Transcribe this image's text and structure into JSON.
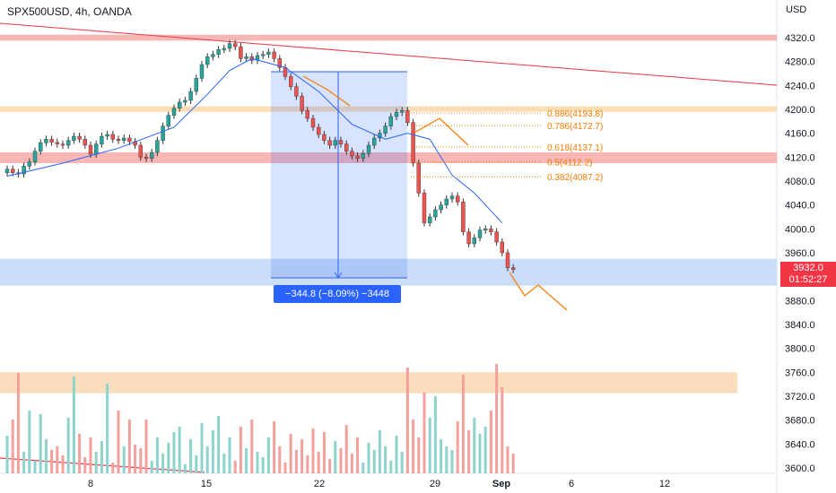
{
  "header": {
    "symbol_line": "SPX500USD, 4h, OANDA",
    "currency": "USD"
  },
  "price_tag": {
    "price": "3932.0",
    "countdown": "01:52:27"
  },
  "measure": {
    "label": "−344.8 (−8.09%) −3448"
  },
  "colors": {
    "up": "#26a69a",
    "down": "#ef5350",
    "ma": "#2962ff",
    "resistance_zone": "#f7a9a8",
    "support_zone": "#bbd2f7",
    "fib": "#f57c00",
    "volume_up": "#8fd3cd",
    "volume_down": "#f4a09c",
    "volume_zone": "#fad9b5",
    "trendline": "#f23645"
  },
  "chart_data": {
    "type": "candlestick",
    "symbol": "SPX500USD",
    "timeframe": "4h",
    "source": "OANDA",
    "last_price": 3932.0,
    "ylim": [
      3600,
      4350
    ],
    "y_ticks": [
      3600,
      3640,
      3680,
      3720,
      3760,
      3800,
      3840,
      3880,
      3920,
      3960,
      4000,
      4040,
      4080,
      4120,
      4160,
      4200,
      4240,
      4280,
      4320
    ],
    "x_ticks": [
      "8",
      "15",
      "22",
      "29",
      "Sep",
      "6",
      "12"
    ],
    "closes": [
      4100,
      4094,
      4092,
      4105,
      4112,
      4130,
      4144,
      4150,
      4145,
      4142,
      4140,
      4148,
      4155,
      4150,
      4140,
      4125,
      4142,
      4155,
      4158,
      4150,
      4148,
      4152,
      4146,
      4140,
      4120,
      4118,
      4128,
      4148,
      4172,
      4190,
      4202,
      4212,
      4215,
      4230,
      4252,
      4275,
      4288,
      4292,
      4300,
      4302,
      4310,
      4305,
      4285,
      4288,
      4282,
      4290,
      4292,
      4296,
      4285,
      4270,
      4255,
      4238,
      4222,
      4198,
      4185,
      4170,
      4158,
      4148,
      4140,
      4148,
      4142,
      4130,
      4122,
      4118,
      4126,
      4140,
      4152,
      4160,
      4172,
      4188,
      4195,
      4198,
      4178,
      4110,
      4060,
      4010,
      4020,
      4032,
      4040,
      4050,
      4055,
      4045,
      3995,
      3975,
      3985,
      3998,
      4000,
      3995,
      3978,
      3960,
      3935,
      3932
    ],
    "moving_average": [
      [
        0,
        4088
      ],
      [
        10,
        4110
      ],
      [
        20,
        4135
      ],
      [
        30,
        4170
      ],
      [
        36,
        4225
      ],
      [
        40,
        4265
      ],
      [
        44,
        4285
      ],
      [
        50,
        4270
      ],
      [
        56,
        4230
      ],
      [
        62,
        4175
      ],
      [
        68,
        4150
      ],
      [
        72,
        4160
      ],
      [
        76,
        4150
      ],
      [
        80,
        4090
      ],
      [
        84,
        4060
      ],
      [
        89,
        4010
      ]
    ],
    "volume": [
      42,
      60,
      18,
      24,
      70,
      14,
      66,
      38,
      26,
      30,
      20,
      62,
      54,
      44,
      18,
      40,
      24,
      36,
      58,
      12,
      70,
      30,
      60,
      32,
      28,
      60,
      14,
      40,
      22,
      34,
      46,
      52,
      10,
      38,
      20,
      56,
      30,
      48,
      64,
      22,
      40,
      14,
      52,
      28,
      60,
      24,
      18,
      40,
      58,
      30,
      12,
      44,
      26,
      38,
      20,
      50,
      24,
      46,
      16,
      36,
      28,
      54,
      22,
      40,
      12,
      34,
      26,
      48,
      30,
      14,
      42,
      24,
      96,
      60,
      40,
      50,
      62,
      86,
      38,
      30,
      26,
      58,
      104,
      48,
      62,
      44,
      52,
      70,
      40,
      96,
      30,
      22
    ],
    "volume_spikes": [
      {
        "i": 2,
        "v": 112
      },
      {
        "i": 12,
        "v": 108
      },
      {
        "i": 18,
        "v": 100
      },
      {
        "i": 72,
        "v": 118
      },
      {
        "i": 75,
        "v": 90
      },
      {
        "i": 82,
        "v": 110
      },
      {
        "i": 88,
        "v": 122
      }
    ],
    "resistance_zones": [
      [
        4315,
        4325
      ],
      [
        4196,
        4205
      ],
      [
        4110,
        4128
      ]
    ],
    "support_zone": [
      3905,
      3950
    ],
    "volume_zone": [
      3725,
      3760
    ],
    "fib_levels": [
      {
        "label": "0.886(4193.8)",
        "value": 4193.8
      },
      {
        "label": "0.786(4172.7)",
        "value": 4172.7
      },
      {
        "label": "0.618(4137.1)",
        "value": 4137.1
      },
      {
        "label": "0.5(4112.2)",
        "value": 4112.2
      },
      {
        "label": "0.382(4087.2)",
        "value": 4087.2
      }
    ],
    "measure": {
      "from": 4263,
      "to": 3918,
      "change": -344.8,
      "percent": -8.09
    }
  }
}
